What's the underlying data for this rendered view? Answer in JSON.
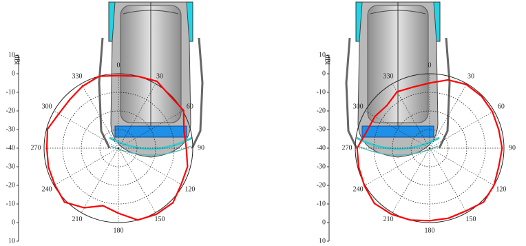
{
  "chart_data": [
    {
      "type": "polar",
      "r_label": "dBi",
      "rlim": [
        -40,
        10
      ],
      "ring_max": 0,
      "rticks": [
        10,
        0,
        -10,
        -20,
        -30,
        -40
      ],
      "thetaticks": [
        0,
        30,
        60,
        90,
        120,
        150,
        180,
        210,
        240,
        270,
        300,
        330
      ],
      "theta": [
        0,
        15,
        30,
        45,
        60,
        75,
        90,
        105,
        120,
        135,
        150,
        165,
        180,
        195,
        210,
        225,
        240,
        255,
        270,
        285,
        300,
        315,
        330,
        345
      ],
      "values": [
        -1,
        0,
        1.5,
        -0.5,
        0.5,
        -3.5,
        -3.5,
        -1.5,
        -1,
        1.5,
        1,
        0,
        -5,
        -8,
        -3,
        1,
        -0.5,
        -1,
        -1.5,
        -0.5,
        -3,
        -3,
        -1.5,
        0
      ],
      "color": "#ff0000"
    },
    {
      "type": "polar",
      "r_label": "dBi",
      "rlim": [
        -40,
        10
      ],
      "ring_max": 0,
      "rticks": [
        10,
        0,
        -10,
        -20,
        -30,
        -40
      ],
      "thetaticks": [
        0,
        30,
        60,
        90,
        120,
        150,
        180,
        210,
        240,
        270,
        300,
        330
      ],
      "theta": [
        0,
        15,
        30,
        45,
        60,
        75,
        90,
        105,
        120,
        135,
        150,
        165,
        180,
        195,
        210,
        225,
        240,
        255,
        270,
        285,
        300,
        315,
        330,
        345
      ],
      "values": [
        -5,
        -2,
        -0.5,
        -0.5,
        -1,
        -1.5,
        -1,
        -1.5,
        0,
        1,
        -1,
        -1,
        -1,
        0,
        1,
        2,
        0.5,
        -0.5,
        -1,
        -5,
        -6,
        -7.5,
        -5,
        -6
      ],
      "color": "#ff0000"
    }
  ]
}
